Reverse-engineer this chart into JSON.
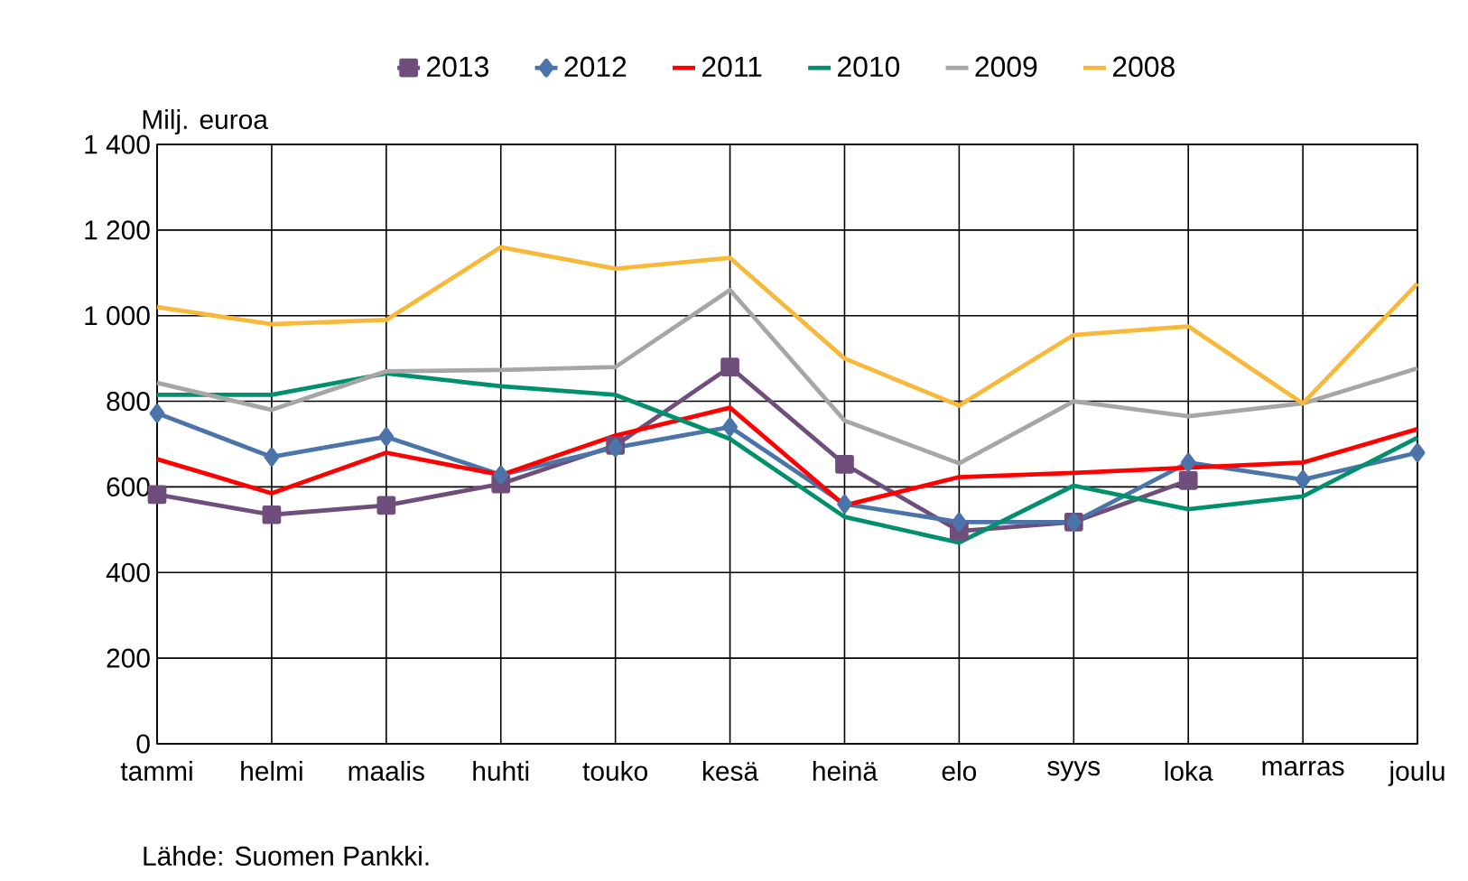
{
  "chart_data": {
    "type": "line",
    "categories": [
      "tammi",
      "helmi",
      "maalis",
      "huhti",
      "touko",
      "kesä",
      "heinä",
      "elo",
      "syys",
      "loka",
      "marras",
      "joulu"
    ],
    "ylabel": "Milj. euroa",
    "series": [
      {
        "name": "2013",
        "color": "#6f4e7c",
        "marker": "square",
        "values": [
          582,
          535,
          557,
          607,
          697,
          880,
          653,
          497,
          518,
          615,
          null,
          null
        ]
      },
      {
        "name": "2012",
        "color": "#4a74aa",
        "marker": "diamond",
        "values": [
          772,
          670,
          717,
          628,
          692,
          740,
          560,
          518,
          518,
          657,
          617,
          680
        ]
      },
      {
        "name": "2011",
        "color": "#ff0000",
        "values": [
          665,
          585,
          680,
          628,
          720,
          785,
          557,
          623,
          633,
          645,
          657,
          735
        ]
      },
      {
        "name": "2010",
        "color": "#00906e",
        "values": [
          815,
          815,
          865,
          835,
          815,
          712,
          530,
          470,
          603,
          548,
          578,
          715
        ]
      },
      {
        "name": "2009",
        "color": "#a6a6a6",
        "values": [
          843,
          780,
          870,
          873,
          880,
          1060,
          755,
          655,
          800,
          765,
          795,
          877
        ]
      },
      {
        "name": "2008",
        "color": "#f8b93a",
        "values": [
          1020,
          980,
          990,
          1160,
          1110,
          1135,
          900,
          790,
          955,
          975,
          795,
          1075
        ]
      }
    ],
    "ylim": [
      0,
      1400
    ],
    "yticks": [
      0,
      200,
      400,
      600,
      800,
      {
        "value": 1000,
        "label": "1 000"
      },
      {
        "value": 1200,
        "label": "1 200"
      },
      {
        "value": 1400,
        "label": "1 400"
      }
    ],
    "grid": true,
    "legend": "top",
    "marker": "none",
    "annotations": [
      "Lähde: Suomen Pankki."
    ]
  }
}
